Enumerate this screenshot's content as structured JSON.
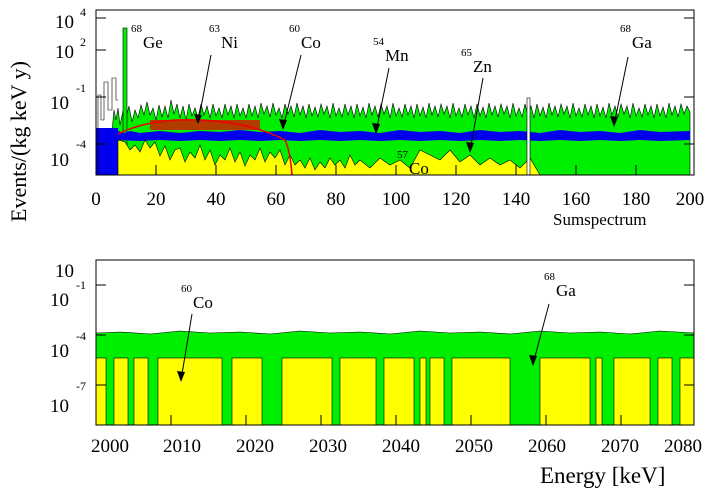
{
  "chart_data": [
    {
      "type": "area",
      "ylabel": "Events/(kg keV y)",
      "xlabel": "Sumspectrum",
      "xlim": [
        0,
        200
      ],
      "x_ticks": [
        "0",
        "20",
        "40",
        "60",
        "80",
        "100",
        "120",
        "140",
        "160",
        "180",
        "200"
      ],
      "y_ticks": [
        {
          "base": "10",
          "exp": "4"
        },
        {
          "base": "10",
          "exp": "2"
        },
        {
          "base": "10",
          "exp": "-1"
        },
        {
          "base": "10",
          "exp": "-4"
        }
      ],
      "annotations": [
        {
          "sup": "68",
          "text": "Ge"
        },
        {
          "sup": "63",
          "text": "Ni"
        },
        {
          "sup": "60",
          "text": "Co"
        },
        {
          "sup": "54",
          "text": "Mn"
        },
        {
          "sup": "65",
          "text": "Zn"
        },
        {
          "sup": "68",
          "text": "Ga"
        },
        {
          "sup": "57",
          "text": "Co"
        }
      ],
      "series": [
        {
          "color": "#00ee00"
        },
        {
          "color": "#0000ee"
        },
        {
          "color": "#ffff00"
        },
        {
          "color": "#ee0000"
        }
      ]
    },
    {
      "type": "area",
      "xlabel": "Energy [keV]",
      "xlim": [
        2000,
        2080
      ],
      "x_ticks": [
        "2000",
        "2010",
        "2020",
        "2030",
        "2040",
        "2050",
        "2060",
        "2070",
        "2080"
      ],
      "y_ticks": [
        {
          "base": "10",
          "exp": "-1"
        },
        {
          "base": "10",
          "exp": "-4"
        },
        {
          "base": "10",
          "exp": "-7"
        }
      ],
      "annotations": [
        {
          "sup": "60",
          "text": "Co"
        },
        {
          "sup": "68",
          "text": "Ga"
        }
      ],
      "series": [
        {
          "color": "#00ee00"
        },
        {
          "color": "#ffff00"
        }
      ]
    }
  ]
}
